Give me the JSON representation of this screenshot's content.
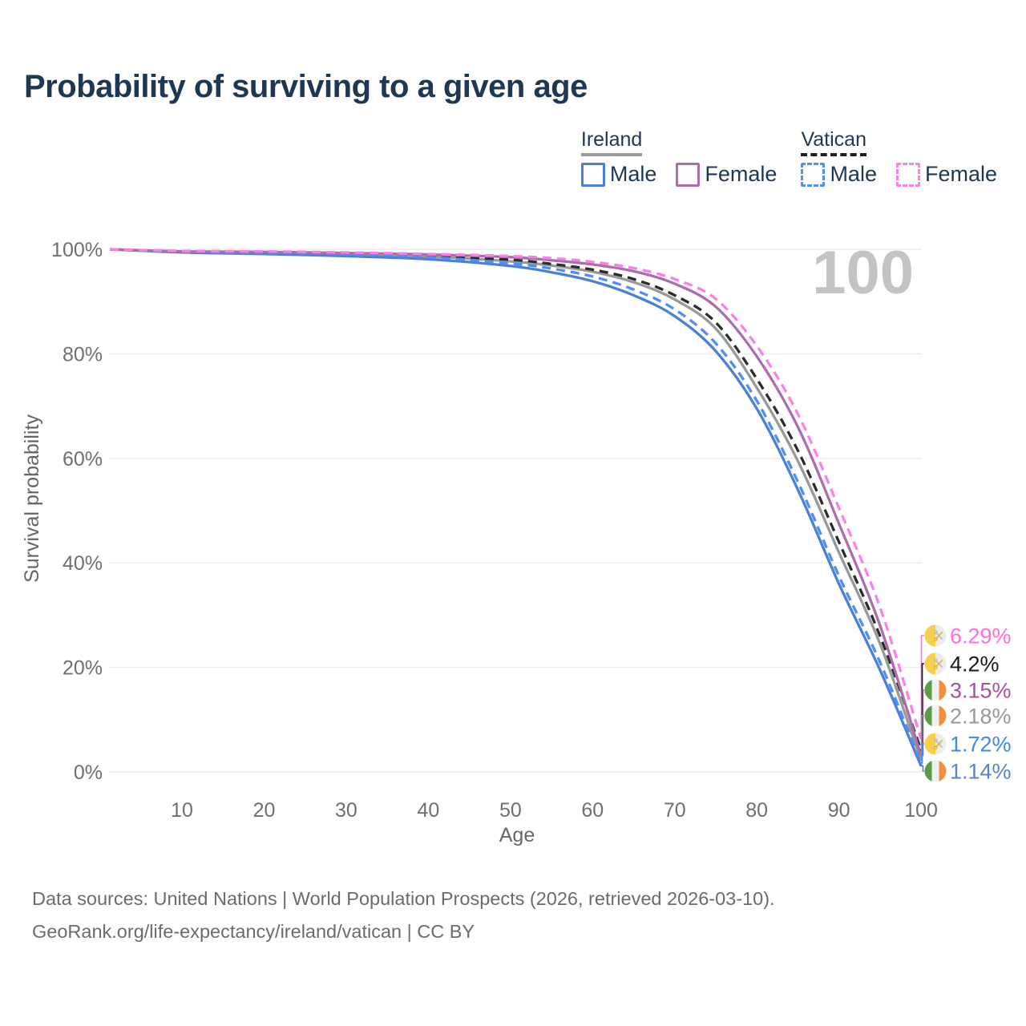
{
  "title": "Probability of surviving to a given age",
  "age_indicator": "100",
  "legend": {
    "groups": [
      {
        "name": "Ireland",
        "line_style": "solid",
        "line_color": "#9a9a9a",
        "items": [
          {
            "label": "Male",
            "color": "#4a80d9",
            "dashed": false
          },
          {
            "label": "Female",
            "color": "#ad6cab",
            "dashed": false
          }
        ]
      },
      {
        "name": "Vatican",
        "line_style": "dashed",
        "line_color": "#1f1f1f",
        "items": [
          {
            "label": "Male",
            "color": "#4f8ef7",
            "dashed": true
          },
          {
            "label": "Female",
            "color": "#fb80e6",
            "dashed": true
          }
        ]
      }
    ]
  },
  "chart_data": {
    "type": "line",
    "title": "Probability of surviving to a given age",
    "xlabel": "Age",
    "ylabel": "Survival probability",
    "xlim": [
      0,
      100
    ],
    "ylim": [
      0,
      100
    ],
    "grid": "horizontal",
    "legend_position": "top-right",
    "x_tick_values": [
      10,
      20,
      30,
      40,
      50,
      60,
      70,
      80,
      90,
      100
    ],
    "x_tick_labels": [
      "10",
      "20",
      "30",
      "40",
      "50",
      "60",
      "70",
      "80",
      "90",
      "100"
    ],
    "y_tick_values": [
      0,
      20,
      40,
      60,
      80,
      100
    ],
    "y_tick_labels": [
      "0%",
      "20%",
      "40%",
      "60%",
      "80%",
      "100%"
    ],
    "x": [
      0,
      10,
      20,
      30,
      40,
      50,
      55,
      60,
      65,
      70,
      75,
      80,
      85,
      90,
      95,
      100
    ],
    "series": [
      {
        "name": "Ireland (both sexes)",
        "country": "Ireland",
        "flag": "ireland",
        "color": "#999999",
        "dashed": false,
        "values": [
          100,
          99.5,
          99.3,
          99.0,
          98.6,
          97.7,
          96.9,
          95.7,
          93.7,
          90.4,
          84.8,
          73.5,
          59.5,
          42.0,
          24.5,
          2.18
        ],
        "end_label": "2.18%",
        "end_label_color": "#999999"
      },
      {
        "name": "Vatican (both sexes)",
        "country": "Vatican",
        "flag": "vatican",
        "color": "#2b2b2b",
        "dashed": true,
        "values": [
          100,
          99.6,
          99.4,
          99.1,
          98.7,
          98.0,
          97.2,
          96.1,
          94.3,
          91.2,
          86.0,
          75.2,
          61.5,
          44.0,
          26.0,
          4.2
        ],
        "end_label": "4.2%",
        "end_label_color": "#1a1a1a"
      },
      {
        "name": "Ireland Male",
        "country": "Ireland",
        "flag": "ireland",
        "color": "#4a80d9",
        "dashed": false,
        "values": [
          100,
          99.4,
          99.1,
          98.7,
          98.1,
          96.8,
          95.6,
          93.9,
          91.2,
          87.2,
          80.5,
          69.5,
          54.0,
          36.0,
          19.5,
          1.14
        ],
        "end_label": "1.14%",
        "end_label_color": "#5c82c4"
      },
      {
        "name": "Vatican Male",
        "country": "Vatican",
        "flag": "vatican",
        "color": "#4f8ef7",
        "dashed": true,
        "values": [
          100,
          99.5,
          99.3,
          99.0,
          98.5,
          97.3,
          96.3,
          94.8,
          92.3,
          88.5,
          82.0,
          71.0,
          55.5,
          37.5,
          21.0,
          1.72
        ],
        "end_label": "1.72%",
        "end_label_color": "#3f86f0"
      },
      {
        "name": "Ireland Female",
        "country": "Ireland",
        "flag": "ireland",
        "color": "#ad6cab",
        "dashed": false,
        "values": [
          100,
          99.6,
          99.5,
          99.3,
          99.0,
          98.5,
          97.9,
          97.1,
          95.8,
          93.4,
          89.0,
          79.5,
          66.0,
          47.5,
          28.0,
          3.15
        ],
        "end_label": "3.15%",
        "end_label_color": "#a2539e"
      },
      {
        "name": "Vatican Female",
        "country": "Vatican",
        "flag": "vatican",
        "color": "#fb80e6",
        "dashed": true,
        "values": [
          100,
          99.7,
          99.6,
          99.4,
          99.1,
          98.7,
          98.3,
          97.6,
          96.4,
          94.3,
          90.5,
          81.5,
          68.5,
          50.5,
          31.5,
          6.29
        ],
        "end_label": "6.29%",
        "end_label_color": "#fb6ee0"
      }
    ],
    "flag_colors": {
      "ireland": {
        "green": "#5a9c44",
        "white": "#f1f1f1",
        "orange": "#f29040"
      },
      "vatican": {
        "yellow": "#f6cf4b",
        "white": "#ececec",
        "key_gold": "#e8b63e",
        "key_silver": "#b9c2c8"
      }
    }
  },
  "footer": {
    "line1": "Data sources: United Nations | World Population Prospects (2026, retrieved 2026-03-10).",
    "line2": "GeoRank.org/life-expectancy/ireland/vatican | CC BY"
  }
}
